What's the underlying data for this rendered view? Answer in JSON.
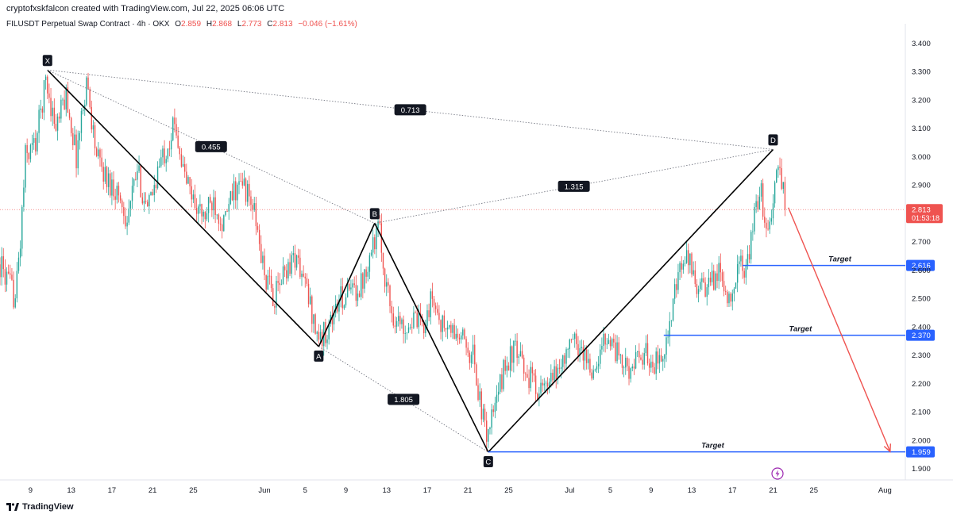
{
  "header": {
    "caption": "cryptofxskfalcon created with TradingView.com, Jul 22, 2025 06:06 UTC",
    "symbol": "FILUSDT Perpetual Swap Contract · 4h · OKX",
    "ohlc": [
      {
        "key": "O",
        "value": "2.859"
      },
      {
        "key": "H",
        "value": "2.868"
      },
      {
        "key": "L",
        "value": "2.773"
      },
      {
        "key": "C",
        "value": "2.813"
      },
      {
        "key": "",
        "value": "−0.046 (−1.61%)"
      }
    ]
  },
  "footer": {
    "brand": "TradingView"
  },
  "colors": {
    "up": "#26a69a",
    "down": "#ef5350",
    "target": "#2962ff",
    "arrow": "#ef5350",
    "pattern": "#000000"
  },
  "icons": {
    "brand": "tradingview-logo-icon",
    "event": "lightning-icon"
  },
  "chart_data": {
    "type": "candlestick",
    "title": "FILUSDT Perpetual Swap Contract · 4h · OKX",
    "timeframe": "4h",
    "x_range": [
      "2025-05-06",
      "2025-08-03"
    ],
    "ylim": [
      1.86,
      3.44
    ],
    "y_ticks": [
      1.9,
      2.0,
      2.1,
      2.2,
      2.3,
      2.4,
      2.5,
      2.6,
      2.7,
      2.8,
      2.9,
      3.0,
      3.1,
      3.2,
      3.3,
      3.4
    ],
    "x_ticks": [
      {
        "date": "2025-05-09",
        "label": "9"
      },
      {
        "date": "2025-05-13",
        "label": "13"
      },
      {
        "date": "2025-05-17",
        "label": "17"
      },
      {
        "date": "2025-05-21",
        "label": "21"
      },
      {
        "date": "2025-05-25",
        "label": "25"
      },
      {
        "date": "2025-06-01",
        "label": "Jun"
      },
      {
        "date": "2025-06-05",
        "label": "5"
      },
      {
        "date": "2025-06-09",
        "label": "9"
      },
      {
        "date": "2025-06-13",
        "label": "13"
      },
      {
        "date": "2025-06-17",
        "label": "17"
      },
      {
        "date": "2025-06-21",
        "label": "21"
      },
      {
        "date": "2025-06-25",
        "label": "25"
      },
      {
        "date": "2025-07-01",
        "label": "Jul"
      },
      {
        "date": "2025-07-05",
        "label": "5"
      },
      {
        "date": "2025-07-09",
        "label": "9"
      },
      {
        "date": "2025-07-13",
        "label": "13"
      },
      {
        "date": "2025-07-17",
        "label": "17"
      },
      {
        "date": "2025-07-21",
        "label": "21"
      },
      {
        "date": "2025-07-25",
        "label": "25"
      },
      {
        "date": "2025-08-01",
        "label": "Aug"
      }
    ],
    "price_path": [
      [
        "2025-05-06 00:00",
        2.62
      ],
      [
        "2025-05-07 12:00",
        2.5
      ],
      [
        "2025-05-08 00:00",
        2.7
      ],
      [
        "2025-05-08 12:00",
        3.0
      ],
      [
        "2025-05-09 12:00",
        3.05
      ],
      [
        "2025-05-10 12:00",
        3.27
      ],
      [
        "2025-05-11 12:00",
        3.1
      ],
      [
        "2025-05-12 12:00",
        3.22
      ],
      [
        "2025-05-13 12:00",
        3.0
      ],
      [
        "2025-05-14 12:00",
        3.27
      ],
      [
        "2025-05-15 12:00",
        3.0
      ],
      [
        "2025-05-16 12:00",
        2.92
      ],
      [
        "2025-05-17 12:00",
        2.88
      ],
      [
        "2025-05-18 12:00",
        2.78
      ],
      [
        "2025-05-19 12:00",
        2.95
      ],
      [
        "2025-05-20 12:00",
        2.8
      ],
      [
        "2025-05-21 12:00",
        2.95
      ],
      [
        "2025-05-22 12:00",
        3.05
      ],
      [
        "2025-05-23 06:00",
        3.12
      ],
      [
        "2025-05-24 00:00",
        2.95
      ],
      [
        "2025-05-25 00:00",
        2.85
      ],
      [
        "2025-05-26 00:00",
        2.78
      ],
      [
        "2025-05-27 00:00",
        2.85
      ],
      [
        "2025-05-28 00:00",
        2.76
      ],
      [
        "2025-05-29 00:00",
        2.88
      ],
      [
        "2025-05-30 00:00",
        2.9
      ],
      [
        "2025-05-31 00:00",
        2.8
      ],
      [
        "2025-06-01 00:00",
        2.58
      ],
      [
        "2025-06-02 00:00",
        2.5
      ],
      [
        "2025-06-03 00:00",
        2.6
      ],
      [
        "2025-06-04 00:00",
        2.65
      ],
      [
        "2025-06-05 00:00",
        2.55
      ],
      [
        "2025-06-06 00:00",
        2.4
      ],
      [
        "2025-06-06 12:00",
        2.35
      ],
      [
        "2025-06-07 12:00",
        2.42
      ],
      [
        "2025-06-08 12:00",
        2.5
      ],
      [
        "2025-06-09 12:00",
        2.52
      ],
      [
        "2025-06-10 12:00",
        2.55
      ],
      [
        "2025-06-11 12:00",
        2.68
      ],
      [
        "2025-06-12 06:00",
        2.75
      ],
      [
        "2025-06-12 18:00",
        2.6
      ],
      [
        "2025-06-13 12:00",
        2.45
      ],
      [
        "2025-06-14 12:00",
        2.4
      ],
      [
        "2025-06-15 12:00",
        2.42
      ],
      [
        "2025-06-16 12:00",
        2.4
      ],
      [
        "2025-06-17 12:00",
        2.5
      ],
      [
        "2025-06-18 12:00",
        2.4
      ],
      [
        "2025-06-19 12:00",
        2.38
      ],
      [
        "2025-06-20 12:00",
        2.35
      ],
      [
        "2025-06-21 12:00",
        2.3
      ],
      [
        "2025-06-22 06:00",
        2.12
      ],
      [
        "2025-06-22 18:00",
        2.02
      ],
      [
        "2025-06-23 18:00",
        2.12
      ],
      [
        "2025-06-24 12:00",
        2.25
      ],
      [
        "2025-06-25 12:00",
        2.32
      ],
      [
        "2025-06-26 12:00",
        2.25
      ],
      [
        "2025-06-27 12:00",
        2.2
      ],
      [
        "2025-06-28 12:00",
        2.17
      ],
      [
        "2025-06-29 12:00",
        2.22
      ],
      [
        "2025-06-30 12:00",
        2.3
      ],
      [
        "2025-07-01 12:00",
        2.35
      ],
      [
        "2025-07-02 12:00",
        2.3
      ],
      [
        "2025-07-03 12:00",
        2.22
      ],
      [
        "2025-07-04 12:00",
        2.38
      ],
      [
        "2025-07-05 12:00",
        2.32
      ],
      [
        "2025-07-06 12:00",
        2.25
      ],
      [
        "2025-07-07 12:00",
        2.27
      ],
      [
        "2025-07-08 12:00",
        2.3
      ],
      [
        "2025-07-09 12:00",
        2.27
      ],
      [
        "2025-07-10 12:00",
        2.35
      ],
      [
        "2025-07-11 00:00",
        2.42
      ],
      [
        "2025-07-11 12:00",
        2.55
      ],
      [
        "2025-07-12 12:00",
        2.65
      ],
      [
        "2025-07-13 12:00",
        2.55
      ],
      [
        "2025-07-14 12:00",
        2.52
      ],
      [
        "2025-07-15 12:00",
        2.6
      ],
      [
        "2025-07-16 12:00",
        2.5
      ],
      [
        "2025-07-17 12:00",
        2.6
      ],
      [
        "2025-07-18 12:00",
        2.62
      ],
      [
        "2025-07-19 00:00",
        2.75
      ],
      [
        "2025-07-19 18:00",
        2.88
      ],
      [
        "2025-07-20 12:00",
        2.72
      ],
      [
        "2025-07-21 00:00",
        2.85
      ],
      [
        "2025-07-21 12:00",
        2.95
      ],
      [
        "2025-07-22 00:00",
        2.9
      ],
      [
        "2025-07-22 06:00",
        2.813
      ]
    ],
    "pattern_points": [
      {
        "label": "X",
        "date": "2025-05-10 16:00",
        "value": 3.305
      },
      {
        "label": "A",
        "date": "2025-06-06 08:00",
        "value": 2.33
      },
      {
        "label": "B",
        "date": "2025-06-11 20:00",
        "value": 2.765
      },
      {
        "label": "C",
        "date": "2025-06-23 00:00",
        "value": 1.958
      },
      {
        "label": "D",
        "date": "2025-07-21 00:00",
        "value": 3.025
      }
    ],
    "ratios": [
      {
        "value": "0.455",
        "from": "X",
        "to": "B"
      },
      {
        "value": "1.805",
        "from": "A",
        "to": "C"
      },
      {
        "value": "1.315",
        "from": "B",
        "to": "D"
      },
      {
        "value": "0.713",
        "from": "X",
        "to": "D"
      }
    ],
    "targets": [
      {
        "label": "Target",
        "value": "2.616",
        "start": "2025-07-18 00:00"
      },
      {
        "label": "Target",
        "value": "2.370",
        "start": "2025-07-10 06:00"
      },
      {
        "label": "Target",
        "value": "1.959",
        "start": "2025-06-23 00:00"
      }
    ],
    "current_price": {
      "value": "2.813",
      "countdown": "01:53:18"
    },
    "projection": {
      "from_date": "2025-07-22 12:00",
      "from_value": 2.82,
      "to_date": "2025-08-01 12:00",
      "to_value": 1.96
    }
  }
}
